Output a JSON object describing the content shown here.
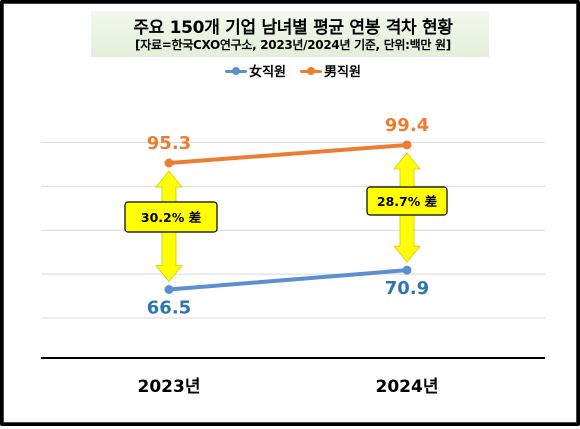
{
  "chart_data": {
    "type": "line",
    "title": "주요 150개 기업 남녀별 평균 연봉 격차 현황",
    "subtitle": "[자료=한국CXO연구소, 2023년/2024년 기준, 단위:백만 원]",
    "categories": [
      "2023년",
      "2024년"
    ],
    "series": [
      {
        "name": "女직원",
        "values": [
          66.5,
          70.9
        ],
        "labels": [
          "66.5",
          "70.9"
        ],
        "color": "#5b8fd0",
        "label_color": "#2e75b6"
      },
      {
        "name": "男직원",
        "values": [
          95.3,
          99.4
        ],
        "labels": [
          "95.3",
          "99.4"
        ],
        "color": "#ed7d31",
        "label_color": "#ed7d31"
      }
    ],
    "annotations": [
      "30.2% 差",
      "28.7% 差"
    ],
    "ylim": [
      50,
      110
    ],
    "grid": true,
    "legend": "top-center",
    "colors": {
      "arrow": "#ffff00",
      "annotation_fill": "#ffff00",
      "axis": "#000000",
      "grid": "#d9d9d9"
    }
  }
}
